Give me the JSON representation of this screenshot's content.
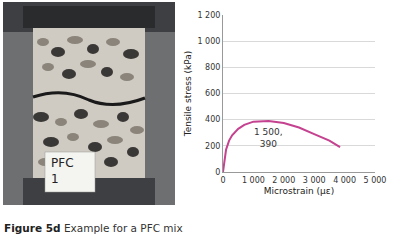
{
  "chart_data": {
    "type": "line",
    "x_label": "Microstrain (με)",
    "y_label": "Tensile stress (kPa)",
    "x": [
      0,
      50,
      100,
      200,
      300,
      500,
      700,
      1000,
      1500,
      2000,
      2500,
      3000,
      3500,
      3850
    ],
    "values": [
      0,
      100,
      170,
      240,
      280,
      330,
      360,
      385,
      390,
      375,
      340,
      290,
      240,
      190
    ],
    "color": "#c4428f",
    "xlim": [
      0,
      5000
    ],
    "ylim": [
      0,
      1200
    ],
    "xticks": [
      0,
      {
        "value": 1000,
        "label": "1 000"
      },
      {
        "value": 2000,
        "label": "2 000"
      },
      {
        "value": 3000,
        "label": "3 000"
      },
      {
        "value": 4000,
        "label": "4 000"
      },
      {
        "value": 5000,
        "label": "5 000"
      }
    ],
    "yticks": [
      0,
      200,
      400,
      600,
      800,
      {
        "value": 1000,
        "label": "1 000"
      },
      {
        "value": 1200,
        "label": "1 200"
      }
    ],
    "grid": true,
    "annotations": [
      {
        "x": 1500,
        "y": 390,
        "lines": [
          "1 500,",
          "390"
        ]
      }
    ]
  },
  "figure": {
    "caption_label": "Figure 5d",
    "caption_text": "Example for a PFC mix",
    "photo_label": [
      "PFC",
      "1"
    ]
  }
}
